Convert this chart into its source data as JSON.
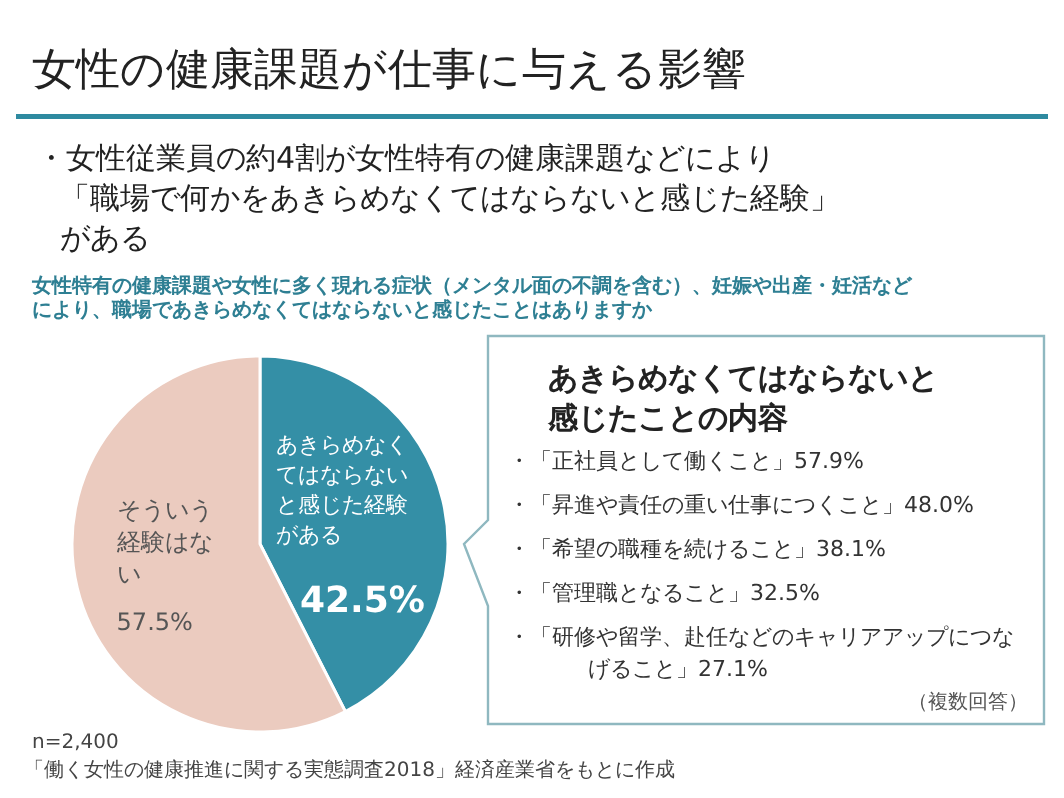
{
  "chart_data": {
    "type": "pie",
    "title": "女性の健康課題が仕事に与える影響",
    "subtitle": "・女性従業員の約4割が女性特有の健康課題などにより「職場で何かをあきらめなくてはならないと感じた経験」がある",
    "categories": [
      "あきらめなくてはならないと感じた経験がある",
      "そういう経験はない"
    ],
    "values": [
      42.5,
      57.5
    ],
    "colors": [
      "#348fa6",
      "#ebcbbf"
    ],
    "value_labels": [
      "42.5%",
      "57.5%"
    ],
    "annotations": [
      "女性特有の健康課題や女性に多く現れる症状（メンタル面の不調を含む）、妊娠や出産・妊活などにより、職場であきらめなくてはならないと感じたことはありますか",
      "あきらめなくてはならないと感じたことの内容",
      "・「正社員として働くこと」57.9%",
      "・「昇進や責任の重い仕事につくこと」48.0%",
      "・「希望の職種を続けること」38.1%",
      "・「管理職となること」32.5%",
      "・「研修や留学、赴任などのキャリアアップにつなげること」27.1%",
      "（複数回答）",
      "n=2,400",
      "「働く女性の健康推進に関する実態調査2018」経済産業省をもとに作成"
    ]
  }
}
